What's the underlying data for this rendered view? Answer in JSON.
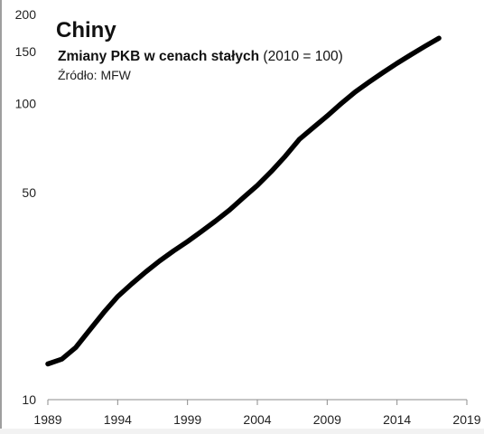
{
  "chart_data": {
    "type": "line",
    "title": "Chiny",
    "subtitle_bold": "Zmiany PKB w cenach stałych",
    "subtitle_normal": "(2010 = 100)",
    "source": "Źródło: MFW",
    "xlabel": "",
    "ylabel": "",
    "y_scale": "log",
    "ylim": [
      10,
      200
    ],
    "xlim": [
      1989,
      2019
    ],
    "x_ticks": [
      1989,
      1994,
      1999,
      2004,
      2009,
      2014,
      2019
    ],
    "y_ticks": [
      10,
      50,
      100,
      150,
      200
    ],
    "grid": false,
    "legend": "none",
    "line_color": "#000000",
    "series": [
      {
        "x": [
          1989,
          1990,
          1991,
          1992,
          1993,
          1994,
          1995,
          1996,
          1997,
          1998,
          1999,
          2000,
          2001,
          2002,
          2003,
          2004,
          2005,
          2006,
          2007,
          2008,
          2009,
          2010,
          2011,
          2012,
          2013,
          2014,
          2015,
          2016,
          2017
        ],
        "values": [
          13.2,
          13.7,
          15.0,
          17.2,
          19.7,
          22.3,
          24.6,
          27.0,
          29.4,
          31.8,
          34.2,
          37.0,
          40.1,
          43.7,
          48.1,
          52.9,
          59.0,
          66.4,
          75.7,
          83.0,
          90.8,
          100,
          109.5,
          118.2,
          127.3,
          136.8,
          146.3,
          156.1,
          166.3
        ]
      }
    ]
  }
}
